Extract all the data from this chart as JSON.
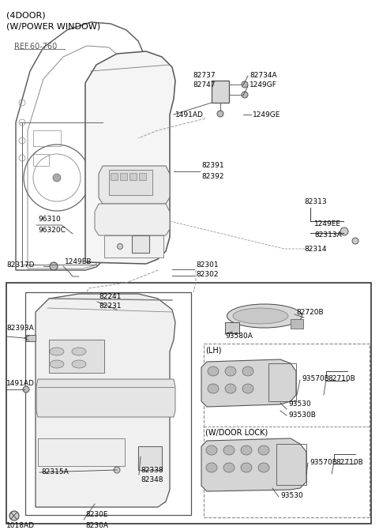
{
  "bg_color": "#ffffff",
  "header1": "(4DOOR)",
  "header2": "(W/POWER WINDOW)",
  "ref": "REF.60-760",
  "gray": "#444444",
  "light": "#888888",
  "fs": 6.5
}
